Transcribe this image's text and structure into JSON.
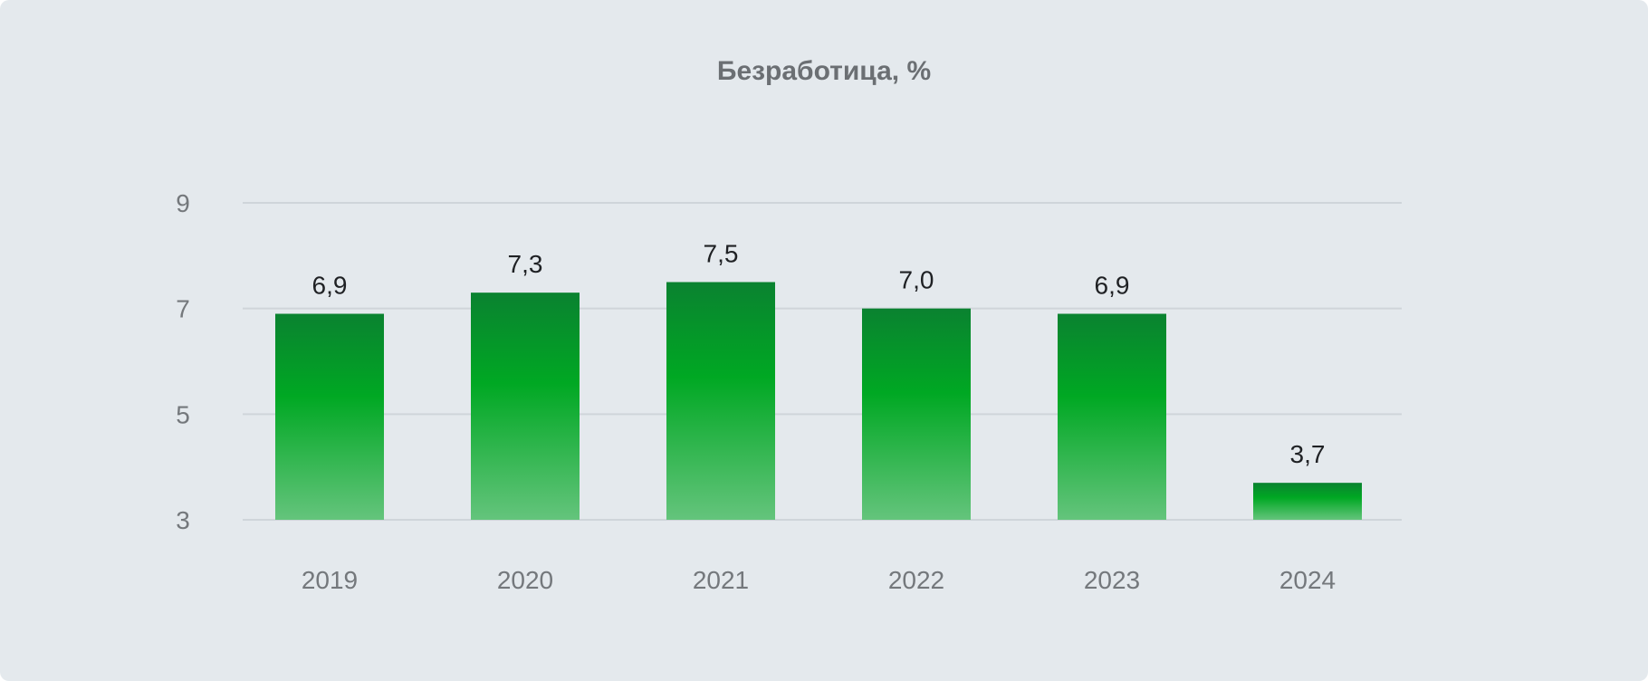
{
  "chart_data": {
    "type": "bar",
    "title": "Безработица, %",
    "xlabel": "",
    "ylabel": "",
    "categories": [
      "2019",
      "2020",
      "2021",
      "2022",
      "2023",
      "2024"
    ],
    "values": [
      6.9,
      7.3,
      7.5,
      7.0,
      6.9,
      3.7
    ],
    "value_labels": [
      "6,9",
      "7,3",
      "7,5",
      "7,0",
      "6,9",
      "3,7"
    ],
    "y_ticks": [
      3,
      5,
      7,
      9
    ],
    "ylim": [
      3,
      9
    ],
    "grid": true,
    "legend": "none",
    "colors": {
      "bar_top": "#0a8230",
      "bar_mid": "#00a823",
      "bar_bottom": "#64c47c",
      "background": "#e4e9ed"
    }
  }
}
